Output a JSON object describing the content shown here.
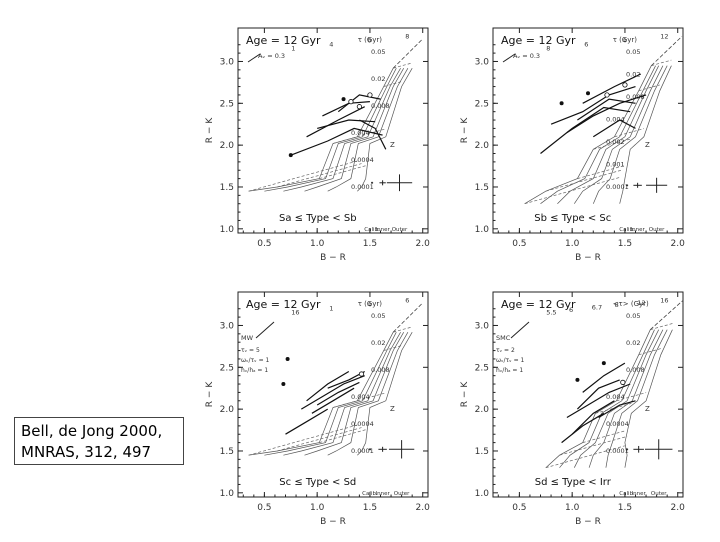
{
  "citation": {
    "line1": "Bell, de Jong 2000,",
    "line2": "MNRAS, 312, 497"
  },
  "chart_data": [
    {
      "type": "line",
      "panel": "top-left",
      "title": "Age = 12 Gyr",
      "subtitle": "Sa ≤ Type < Sb",
      "xlabel": "B − R",
      "ylabel": "R − K",
      "xlim": [
        0.25,
        2.05
      ],
      "ylim": [
        0.95,
        3.4
      ],
      "xticks": [
        "0.5",
        "1.0",
        "1.5",
        "2.0"
      ],
      "yticks": [
        "1.0",
        "1.5",
        "2.0",
        "2.5",
        "3.0"
      ],
      "age_label": "τ (Gyr)",
      "tau_ticks": [
        "1",
        "4",
        "6",
        "8"
      ],
      "metallicity_labels": [
        "0.05",
        "0.02",
        "0.008",
        "0.004",
        "0.0004",
        "0.0001"
      ],
      "z_label": "Z",
      "error_labels": [
        "Calib.",
        "Inner",
        "Outer"
      ],
      "av_label": "Aᵥ = 0.3",
      "grid_x": [
        [
          0.35,
          0.62,
          1.02,
          1.15,
          1.38,
          1.63,
          1.72
        ],
        [
          0.5,
          0.72,
          1.08,
          1.2,
          1.43,
          1.66,
          1.75
        ],
        [
          0.68,
          0.85,
          1.15,
          1.26,
          1.48,
          1.69,
          1.79
        ],
        [
          0.88,
          1.0,
          1.23,
          1.32,
          1.53,
          1.72,
          1.82
        ],
        [
          1.1,
          1.18,
          1.32,
          1.39,
          1.58,
          1.76,
          1.86
        ],
        [
          1.38,
          1.42,
          1.46,
          1.5,
          1.65,
          1.8,
          1.9
        ]
      ],
      "grid_y": [
        1.45,
        1.5,
        1.6,
        2.02,
        2.1,
        2.7,
        2.92
      ],
      "galaxies": [
        [
          [
            0.75,
            1.88
          ],
          [
            1.1,
            2.05
          ],
          [
            1.35,
            2.2
          ],
          [
            1.62,
            2.12
          ]
        ],
        [
          [
            0.9,
            2.1
          ],
          [
            1.2,
            2.3
          ],
          [
            1.45,
            2.46
          ]
        ],
        [
          [
            1.05,
            2.35
          ],
          [
            1.3,
            2.5
          ],
          [
            1.5,
            2.52
          ]
        ],
        [
          [
            1.2,
            2.4
          ],
          [
            1.4,
            2.6
          ],
          [
            1.6,
            2.55
          ]
        ],
        [
          [
            1.0,
            2.2
          ],
          [
            1.3,
            2.3
          ],
          [
            1.55,
            2.28
          ]
        ],
        [
          [
            1.4,
            2.3
          ],
          [
            1.55,
            2.2
          ],
          [
            1.65,
            1.95
          ]
        ]
      ],
      "open_markers": [
        [
          1.32,
          2.52
        ],
        [
          1.4,
          2.46
        ],
        [
          1.5,
          2.6
        ]
      ],
      "dots": [
        [
          0.75,
          1.88
        ],
        [
          1.25,
          2.55
        ]
      ],
      "error_bars": [
        [
          1.52,
          1.55,
          0.01,
          0.01
        ],
        [
          1.62,
          1.55,
          0.03,
          0.03
        ],
        [
          1.78,
          1.55,
          0.12,
          0.1
        ]
      ]
    },
    {
      "type": "line",
      "panel": "top-right",
      "title": "Age = 12 Gyr",
      "subtitle": "Sb ≤ Type < Sc",
      "xlabel": "B − R",
      "ylabel": "R − K",
      "xlim": [
        0.25,
        2.05
      ],
      "ylim": [
        0.95,
        3.4
      ],
      "xticks": [
        "0.5",
        "1.0",
        "1.5",
        "2.0"
      ],
      "yticks": [
        "1.0",
        "1.5",
        "2.0",
        "2.5",
        "3.0"
      ],
      "age_label": "τ (Gyr)",
      "tau_ticks": [
        "8",
        "6",
        "4",
        "12"
      ],
      "metallicity_labels": [
        "0.05",
        "0.02",
        "0.008",
        "0.004",
        "0.002",
        "0.001",
        "0.0001"
      ],
      "z_label": "Z",
      "error_labels": [
        "Calib.",
        "Inner",
        "Outer"
      ],
      "av_label": "Aᵥ = 0.3",
      "grid_x": [
        [
          0.55,
          0.75,
          1.05,
          1.2,
          1.4,
          1.63,
          1.75
        ],
        [
          0.7,
          0.86,
          1.12,
          1.26,
          1.45,
          1.67,
          1.79
        ],
        [
          0.86,
          0.98,
          1.2,
          1.32,
          1.5,
          1.7,
          1.82
        ],
        [
          1.02,
          1.1,
          1.28,
          1.38,
          1.55,
          1.74,
          1.86
        ],
        [
          1.2,
          1.25,
          1.36,
          1.45,
          1.6,
          1.78,
          1.9
        ],
        [
          1.45,
          1.48,
          1.5,
          1.55,
          1.68,
          1.83,
          1.94
        ]
      ],
      "grid_y": [
        1.3,
        1.45,
        1.6,
        1.95,
        2.1,
        2.65,
        2.95
      ],
      "galaxies": [
        [
          [
            0.8,
            2.25
          ],
          [
            1.1,
            2.4
          ],
          [
            1.35,
            2.6
          ],
          [
            1.6,
            2.7
          ]
        ],
        [
          [
            0.95,
            2.15
          ],
          [
            1.2,
            2.35
          ],
          [
            1.45,
            2.5
          ],
          [
            1.7,
            2.6
          ]
        ],
        [
          [
            0.7,
            1.9
          ],
          [
            1.0,
            2.2
          ],
          [
            1.3,
            2.45
          ],
          [
            1.55,
            2.4
          ]
        ],
        [
          [
            1.05,
            2.3
          ],
          [
            1.35,
            2.55
          ],
          [
            1.6,
            2.5
          ]
        ],
        [
          [
            1.1,
            2.5
          ],
          [
            1.4,
            2.7
          ],
          [
            1.65,
            2.85
          ]
        ],
        [
          [
            1.2,
            2.1
          ],
          [
            1.45,
            2.3
          ],
          [
            1.6,
            2.2
          ]
        ]
      ],
      "open_markers": [
        [
          1.33,
          2.6
        ],
        [
          1.5,
          2.72
        ]
      ],
      "dots": [
        [
          0.9,
          2.5
        ],
        [
          1.15,
          2.62
        ]
      ],
      "error_bars": [
        [
          1.52,
          1.52,
          0.01,
          0.01
        ],
        [
          1.62,
          1.52,
          0.04,
          0.03
        ],
        [
          1.8,
          1.52,
          0.1,
          0.09
        ]
      ]
    },
    {
      "type": "line",
      "panel": "bottom-left",
      "title": "Age = 12 Gyr",
      "subtitle": "Sc ≤ Type < Sd",
      "xlabel": "B − R",
      "ylabel": "R − K",
      "xlim": [
        0.25,
        2.05
      ],
      "ylim": [
        0.95,
        3.4
      ],
      "xticks": [
        "0.5",
        "1.0",
        "1.5",
        "2.0"
      ],
      "yticks": [
        "1.0",
        "1.5",
        "2.0",
        "2.5",
        "3.0"
      ],
      "age_label": "τ (Gyr)",
      "tau_ticks": [
        "16",
        "1",
        "4",
        "6"
      ],
      "metallicity_labels": [
        "0.05",
        "0.02",
        "0.008",
        "0.004",
        "0.0004",
        "0.0001"
      ],
      "z_label": "Z",
      "error_labels": [
        "Calib.",
        "Inner",
        "Outer"
      ],
      "model_label": "MW",
      "legend_lines": [
        "τᵥ = 5",
        "ωᵥ/τᵥ = 1",
        "hᵥ/hₐ = 1"
      ],
      "grid_x": [
        [
          0.35,
          0.62,
          1.02,
          1.15,
          1.38,
          1.63,
          1.72
        ],
        [
          0.5,
          0.72,
          1.08,
          1.2,
          1.43,
          1.66,
          1.75
        ],
        [
          0.68,
          0.85,
          1.15,
          1.26,
          1.48,
          1.69,
          1.79
        ],
        [
          0.88,
          1.0,
          1.23,
          1.32,
          1.53,
          1.72,
          1.82
        ],
        [
          1.1,
          1.18,
          1.32,
          1.39,
          1.58,
          1.76,
          1.86
        ],
        [
          1.38,
          1.42,
          1.46,
          1.5,
          1.65,
          1.8,
          1.9
        ]
      ],
      "grid_y": [
        1.45,
        1.5,
        1.6,
        2.02,
        2.1,
        2.7,
        2.92
      ],
      "galaxies": [
        [
          [
            0.85,
            2.0
          ],
          [
            1.05,
            2.15
          ],
          [
            1.25,
            2.3
          ],
          [
            1.45,
            2.4
          ]
        ],
        [
          [
            0.95,
            1.95
          ],
          [
            1.15,
            2.1
          ],
          [
            1.35,
            2.25
          ]
        ],
        [
          [
            1.0,
            2.05
          ],
          [
            1.2,
            2.2
          ],
          [
            1.4,
            2.32
          ]
        ],
        [
          [
            0.7,
            1.7
          ],
          [
            0.9,
            1.85
          ],
          [
            1.1,
            2.0
          ]
        ],
        [
          [
            1.1,
            2.25
          ],
          [
            1.3,
            2.35
          ],
          [
            1.45,
            2.45
          ]
        ],
        [
          [
            0.9,
            2.1
          ],
          [
            1.1,
            2.3
          ],
          [
            1.3,
            2.45
          ]
        ]
      ],
      "open_markers": [
        [
          1.42,
          2.42
        ]
      ],
      "dots": [
        [
          0.72,
          2.6
        ],
        [
          0.68,
          2.3
        ]
      ],
      "error_bars": [
        [
          1.5,
          1.52,
          0.01,
          0.01
        ],
        [
          1.62,
          1.52,
          0.04,
          0.03
        ],
        [
          1.8,
          1.52,
          0.12,
          0.11
        ]
      ]
    },
    {
      "type": "line",
      "panel": "bottom-right",
      "title": "Age = 12 Gyr",
      "subtitle": "Sd ≤ Type < Irr",
      "xlabel": "B − R",
      "ylabel": "R − K",
      "xlim": [
        0.25,
        2.05
      ],
      "ylim": [
        0.95,
        3.4
      ],
      "xticks": [
        "0.5",
        "1.0",
        "1.5",
        "2.0"
      ],
      "yticks": [
        "1.0",
        "1.5",
        "2.0",
        "2.5",
        "3.0"
      ],
      "age_label": "<τ> (Gyr)",
      "tau_ticks": [
        "5.5",
        "6",
        "6.7",
        "8",
        "12",
        "16"
      ],
      "metallicity_labels": [
        "0.05",
        "0.02",
        "0.008",
        "0.004",
        "0.0004",
        "0.0001"
      ],
      "z_label": "Z",
      "error_labels": [
        "Calib.",
        "Inner",
        "Outer"
      ],
      "model_label": "SMC",
      "legend_lines": [
        "τᵥ = 2",
        "ωᵥ/τᵥ = 1",
        "hᵥ/hₐ = 1"
      ],
      "grid_x": [
        [
          0.75,
          0.88,
          1.1,
          1.22,
          1.42,
          1.63,
          1.74
        ],
        [
          0.88,
          0.98,
          1.16,
          1.28,
          1.47,
          1.67,
          1.78
        ],
        [
          1.02,
          1.08,
          1.22,
          1.34,
          1.52,
          1.7,
          1.82
        ],
        [
          1.16,
          1.2,
          1.3,
          1.4,
          1.57,
          1.74,
          1.86
        ],
        [
          1.32,
          1.34,
          1.38,
          1.47,
          1.62,
          1.78,
          1.9
        ],
        [
          1.5,
          1.52,
          1.5,
          1.56,
          1.7,
          1.84,
          1.95
        ]
      ],
      "grid_y": [
        1.3,
        1.45,
        1.6,
        1.95,
        2.1,
        2.65,
        2.95
      ],
      "galaxies": [
        [
          [
            0.95,
            1.9
          ],
          [
            1.15,
            2.05
          ],
          [
            1.35,
            2.2
          ],
          [
            1.55,
            2.3
          ]
        ],
        [
          [
            1.0,
            1.7
          ],
          [
            1.2,
            1.95
          ],
          [
            1.4,
            2.1
          ]
        ],
        [
          [
            1.05,
            2.0
          ],
          [
            1.25,
            2.25
          ],
          [
            1.45,
            2.35
          ]
        ],
        [
          [
            0.9,
            1.6
          ],
          [
            1.1,
            1.8
          ],
          [
            1.3,
            1.95
          ]
        ],
        [
          [
            1.1,
            2.2
          ],
          [
            1.3,
            2.4
          ],
          [
            1.5,
            2.55
          ]
        ],
        [
          [
            1.25,
            1.9
          ],
          [
            1.45,
            2.05
          ],
          [
            1.6,
            2.1
          ]
        ]
      ],
      "open_markers": [
        [
          1.48,
          2.32
        ]
      ],
      "dots": [
        [
          1.05,
          2.35
        ],
        [
          1.3,
          2.55
        ]
      ],
      "error_bars": [
        [
          1.52,
          1.52,
          0.01,
          0.01
        ],
        [
          1.63,
          1.52,
          0.05,
          0.04
        ],
        [
          1.82,
          1.52,
          0.13,
          0.12
        ]
      ]
    }
  ]
}
